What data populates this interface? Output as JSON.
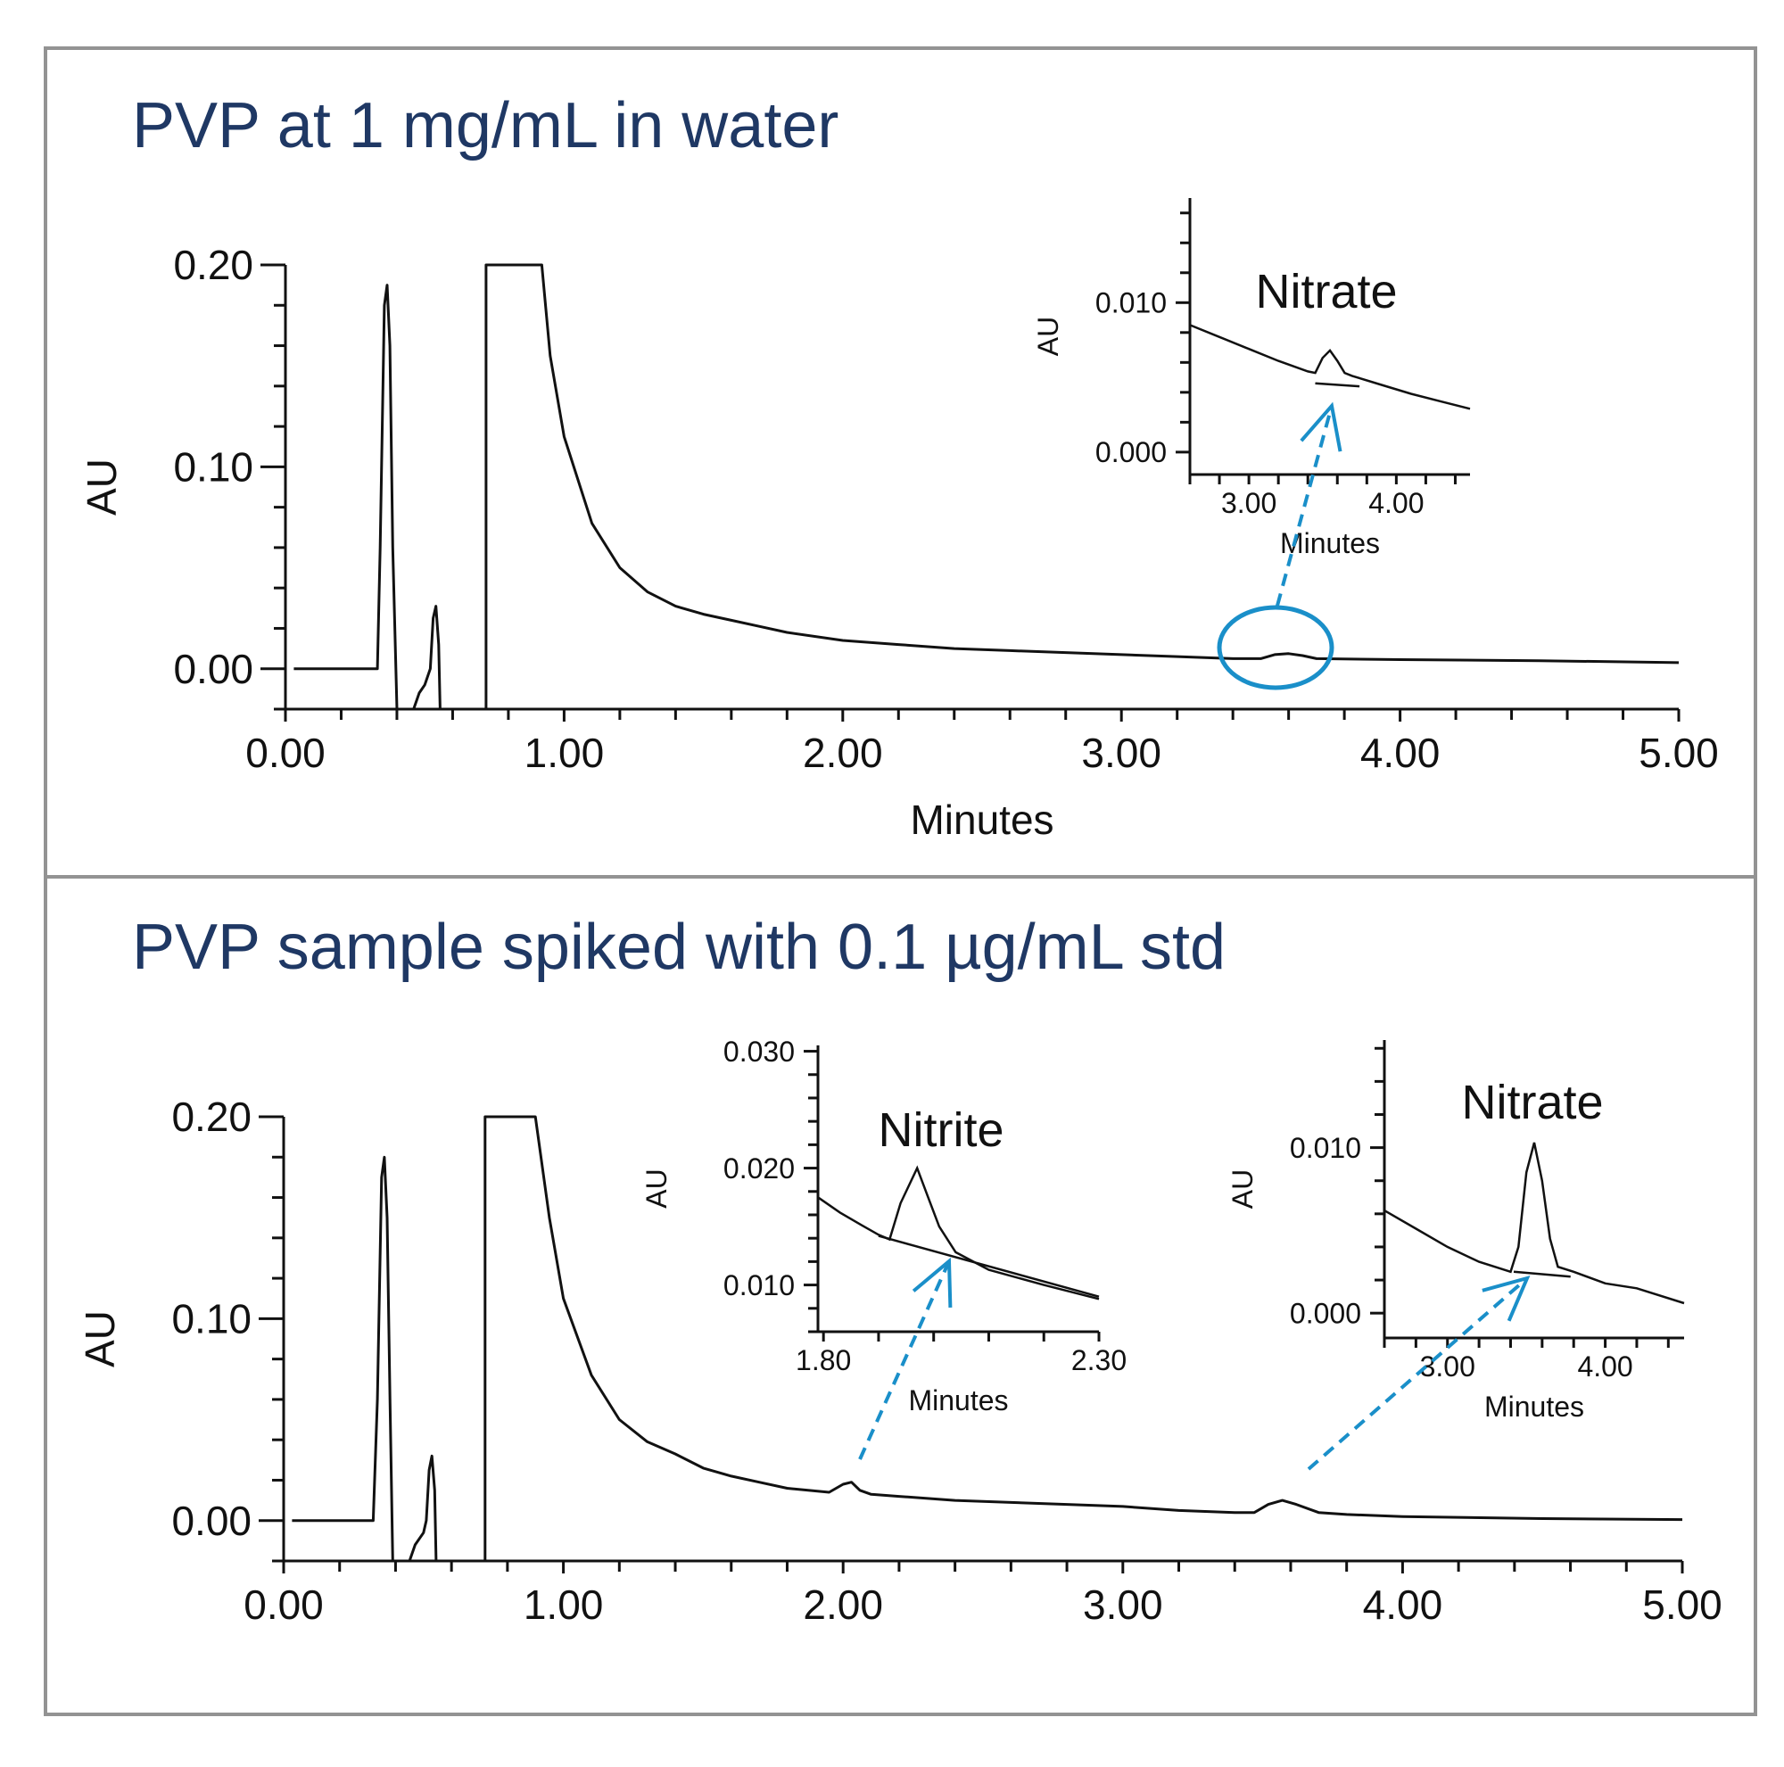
{
  "panels": [
    {
      "title": "PVP at 1 mg/mL in water"
    },
    {
      "title": "PVP sample spiked with 0.1 µg/mL std"
    }
  ],
  "colors": {
    "title": "#1f3864",
    "trace": "#111111",
    "annotation": "#1a8fc9",
    "frame": "#939393"
  },
  "chart_data": [
    {
      "type": "line",
      "title": "PVP at 1 mg/mL in water",
      "xlabel": "Minutes",
      "ylabel": "AU",
      "xlim": [
        0,
        5
      ],
      "ylim": [
        -0.02,
        0.2
      ],
      "xticks": [
        "0.00",
        "1.00",
        "2.00",
        "3.00",
        "4.00",
        "5.00"
      ],
      "yticks": [
        "0.00",
        "0.10",
        "0.20"
      ],
      "series": [
        {
          "values": [
            [
              0.03,
              0.0
            ],
            [
              0.33,
              0.0
            ],
            [
              0.34,
              0.06
            ],
            [
              0.355,
              0.18
            ],
            [
              0.365,
              0.19
            ],
            [
              0.375,
              0.16
            ],
            [
              0.385,
              0.06
            ],
            [
              0.4,
              -0.02
            ],
            [
              0.46,
              -0.02
            ],
            [
              0.48,
              -0.012
            ],
            [
              0.5,
              -0.008
            ],
            [
              0.52,
              0.0
            ],
            [
              0.53,
              0.025
            ],
            [
              0.54,
              0.031
            ],
            [
              0.55,
              0.012
            ],
            [
              0.555,
              -0.02
            ],
            [
              0.72,
              -0.02
            ],
            [
              0.72,
              0.2
            ],
            [
              0.92,
              0.2
            ],
            [
              0.95,
              0.155
            ],
            [
              1.0,
              0.115
            ],
            [
              1.1,
              0.072
            ],
            [
              1.2,
              0.05
            ],
            [
              1.3,
              0.038
            ],
            [
              1.4,
              0.031
            ],
            [
              1.5,
              0.027
            ],
            [
              1.6,
              0.024
            ],
            [
              1.7,
              0.021
            ],
            [
              1.8,
              0.018
            ],
            [
              2.0,
              0.014
            ],
            [
              2.2,
              0.012
            ],
            [
              2.4,
              0.01
            ],
            [
              2.6,
              0.009
            ],
            [
              2.8,
              0.008
            ],
            [
              3.0,
              0.007
            ],
            [
              3.2,
              0.006
            ],
            [
              3.4,
              0.005
            ],
            [
              3.5,
              0.005
            ],
            [
              3.55,
              0.007
            ],
            [
              3.6,
              0.0075
            ],
            [
              3.65,
              0.0065
            ],
            [
              3.7,
              0.005
            ],
            [
              4.0,
              0.0045
            ],
            [
              4.5,
              0.004
            ],
            [
              5.0,
              0.003
            ]
          ]
        }
      ],
      "annotations": [
        {
          "text": "Nitrate",
          "x": 3.55
        }
      ],
      "insets": [
        {
          "peak": "Nitrate",
          "xlabel": "Minutes",
          "ylabel": "AU",
          "xlim": [
            2.6,
            4.5
          ],
          "ylim": [
            -0.0015,
            0.017
          ],
          "xticks": [
            "3.00",
            "4.00"
          ],
          "yticks": [
            "0.000",
            "0.010"
          ],
          "values": [
            [
              2.6,
              0.0085
            ],
            [
              2.8,
              0.0077
            ],
            [
              3.0,
              0.0069
            ],
            [
              3.2,
              0.0061
            ],
            [
              3.4,
              0.0054
            ],
            [
              3.45,
              0.0053
            ],
            [
              3.5,
              0.0063
            ],
            [
              3.55,
              0.0068
            ],
            [
              3.6,
              0.0061
            ],
            [
              3.65,
              0.0053
            ],
            [
              3.7,
              0.0051
            ],
            [
              3.9,
              0.0045
            ],
            [
              4.1,
              0.0039
            ],
            [
              4.3,
              0.0034
            ],
            [
              4.5,
              0.0029
            ]
          ],
          "baseline": [
            [
              3.45,
              0.0046
            ],
            [
              3.75,
              0.0044
            ]
          ]
        }
      ]
    },
    {
      "type": "line",
      "title": "PVP sample spiked with 0.1 µg/mL std",
      "xlabel": "",
      "ylabel": "AU",
      "xlim": [
        0,
        5
      ],
      "ylim": [
        -0.02,
        0.2
      ],
      "xticks": [
        "0.00",
        "1.00",
        "2.00",
        "3.00",
        "4.00",
        "5.00"
      ],
      "yticks": [
        "0.00",
        "0.10",
        "0.20"
      ],
      "series": [
        {
          "values": [
            [
              0.03,
              0.0
            ],
            [
              0.32,
              0.0
            ],
            [
              0.335,
              0.06
            ],
            [
              0.35,
              0.17
            ],
            [
              0.36,
              0.18
            ],
            [
              0.37,
              0.15
            ],
            [
              0.38,
              0.06
            ],
            [
              0.39,
              -0.02
            ],
            [
              0.45,
              -0.02
            ],
            [
              0.47,
              -0.012
            ],
            [
              0.5,
              -0.006
            ],
            [
              0.51,
              0.0
            ],
            [
              0.52,
              0.025
            ],
            [
              0.53,
              0.032
            ],
            [
              0.54,
              0.015
            ],
            [
              0.545,
              -0.02
            ],
            [
              0.72,
              -0.02
            ],
            [
              0.72,
              0.2
            ],
            [
              0.9,
              0.2
            ],
            [
              0.95,
              0.15
            ],
            [
              1.0,
              0.11
            ],
            [
              1.1,
              0.072
            ],
            [
              1.2,
              0.05
            ],
            [
              1.3,
              0.039
            ],
            [
              1.4,
              0.033
            ],
            [
              1.5,
              0.026
            ],
            [
              1.6,
              0.022
            ],
            [
              1.7,
              0.019
            ],
            [
              1.8,
              0.016
            ],
            [
              1.95,
              0.014
            ],
            [
              2.0,
              0.018
            ],
            [
              2.03,
              0.019
            ],
            [
              2.06,
              0.015
            ],
            [
              2.1,
              0.013
            ],
            [
              2.2,
              0.012
            ],
            [
              2.4,
              0.01
            ],
            [
              2.6,
              0.009
            ],
            [
              2.8,
              0.008
            ],
            [
              3.0,
              0.007
            ],
            [
              3.2,
              0.005
            ],
            [
              3.4,
              0.004
            ],
            [
              3.47,
              0.004
            ],
            [
              3.52,
              0.008
            ],
            [
              3.57,
              0.01
            ],
            [
              3.62,
              0.008
            ],
            [
              3.7,
              0.004
            ],
            [
              3.8,
              0.003
            ],
            [
              4.0,
              0.002
            ],
            [
              4.5,
              0.001
            ],
            [
              5.0,
              0.0005
            ]
          ]
        }
      ],
      "annotations": [
        {
          "text": "Nitrite",
          "x": 2.03
        },
        {
          "text": "Nitrate",
          "x": 3.57
        }
      ],
      "insets": [
        {
          "peak": "Nitrite",
          "xlabel": "Minutes",
          "ylabel": "AU",
          "xlim": [
            1.79,
            2.3
          ],
          "ylim": [
            0.006,
            0.0305
          ],
          "xticks": [
            "1.80",
            "2.30"
          ],
          "yticks": [
            "0.010",
            "0.020",
            "0.030"
          ],
          "values": [
            [
              1.79,
              0.0175
            ],
            [
              1.83,
              0.0162
            ],
            [
              1.87,
              0.0151
            ],
            [
              1.9,
              0.0143
            ],
            [
              1.92,
              0.0139
            ],
            [
              1.94,
              0.017
            ],
            [
              1.97,
              0.02
            ],
            [
              1.99,
              0.0175
            ],
            [
              2.01,
              0.015
            ],
            [
              2.04,
              0.0128
            ],
            [
              2.1,
              0.0113
            ],
            [
              2.2,
              0.01
            ],
            [
              2.3,
              0.0088
            ]
          ],
          "baseline": [
            [
              1.9,
              0.0142
            ],
            [
              2.3,
              0.009
            ]
          ]
        },
        {
          "peak": "Nitrate",
          "xlabel": "Minutes",
          "ylabel": "AU",
          "xlim": [
            2.6,
            4.5
          ],
          "ylim": [
            -0.0015,
            0.0165
          ],
          "xticks": [
            "3.00",
            "4.00"
          ],
          "yticks": [
            "0.000",
            "0.010"
          ],
          "values": [
            [
              2.6,
              0.0062
            ],
            [
              2.8,
              0.0051
            ],
            [
              3.0,
              0.004
            ],
            [
              3.2,
              0.0031
            ],
            [
              3.4,
              0.0025
            ],
            [
              3.45,
              0.004
            ],
            [
              3.5,
              0.0085
            ],
            [
              3.55,
              0.0103
            ],
            [
              3.6,
              0.008
            ],
            [
              3.65,
              0.0045
            ],
            [
              3.7,
              0.0028
            ],
            [
              3.8,
              0.0025
            ],
            [
              4.0,
              0.0018
            ],
            [
              4.2,
              0.0015
            ],
            [
              4.5,
              0.0006
            ]
          ],
          "baseline": [
            [
              3.42,
              0.0025
            ],
            [
              3.78,
              0.0022
            ]
          ]
        }
      ]
    }
  ]
}
